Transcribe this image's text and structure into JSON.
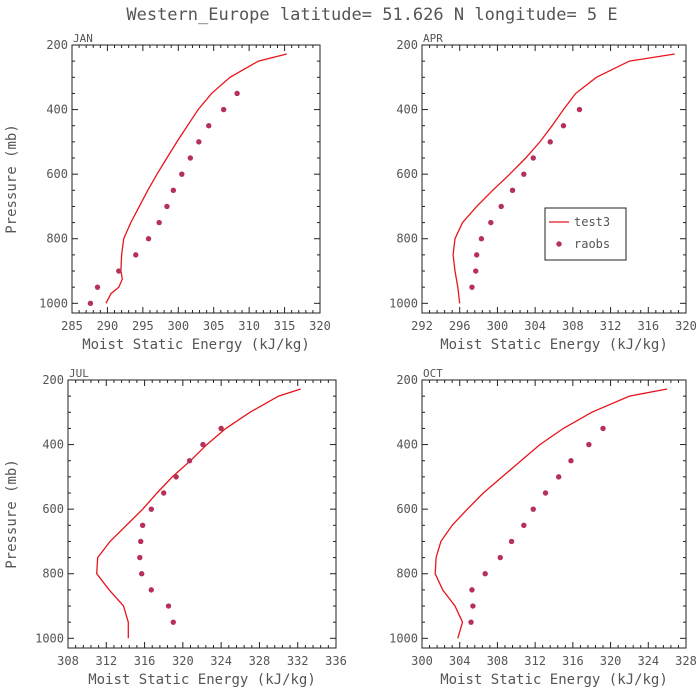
{
  "figure": {
    "title": "Western_Europe  latitude= 51.626 N longitude= 5 E"
  },
  "colors": {
    "model": "#e8141c",
    "obs": "#b5305a",
    "frame": "#222222",
    "text": "#555555"
  },
  "chart_data": [
    {
      "type": "line",
      "title": "JAN",
      "xlabel": "Moist Static Energy (kJ/kg)",
      "ylabel": "Pressure (mb)",
      "xlim": [
        285,
        320
      ],
      "xticks": [
        285,
        290,
        295,
        300,
        305,
        310,
        315,
        320
      ],
      "ylim": [
        1030,
        200
      ],
      "yticks": [
        200,
        400,
        600,
        800,
        1000
      ],
      "grid": false,
      "legend": "none",
      "series": [
        {
          "name": "test3",
          "kind": "line",
          "points": [
            [
              289.8,
              1000
            ],
            [
              290.5,
              970
            ],
            [
              291.6,
              950
            ],
            [
              292.1,
              925
            ],
            [
              291.9,
              900
            ],
            [
              292.0,
              850
            ],
            [
              292.3,
              800
            ],
            [
              293.3,
              750
            ],
            [
              294.5,
              700
            ],
            [
              295.7,
              650
            ],
            [
              297.0,
              600
            ],
            [
              298.4,
              550
            ],
            [
              299.8,
              500
            ],
            [
              301.3,
              450
            ],
            [
              302.8,
              400
            ],
            [
              304.7,
              350
            ],
            [
              307.3,
              300
            ],
            [
              311.3,
              250
            ],
            [
              315.3,
              228
            ]
          ]
        },
        {
          "name": "raobs",
          "kind": "points",
          "points": [
            [
              287.6,
              1000
            ],
            [
              288.6,
              950
            ],
            [
              291.6,
              900
            ],
            [
              294.0,
              850
            ],
            [
              295.8,
              800
            ],
            [
              297.3,
              750
            ],
            [
              298.4,
              700
            ],
            [
              299.3,
              650
            ],
            [
              300.5,
              600
            ],
            [
              301.7,
              550
            ],
            [
              302.9,
              500
            ],
            [
              304.3,
              450
            ],
            [
              306.4,
              400
            ],
            [
              308.3,
              350
            ]
          ]
        }
      ]
    },
    {
      "type": "line",
      "title": "APR",
      "xlabel": "Moist Static Energy (kJ/kg)",
      "ylabel": "",
      "xlim": [
        292,
        320
      ],
      "xticks": [
        292,
        296,
        300,
        304,
        308,
        312,
        316,
        320
      ],
      "ylim": [
        1030,
        200
      ],
      "yticks": [
        200,
        400,
        600,
        800,
        1000
      ],
      "grid": false,
      "legend": "right",
      "series": [
        {
          "name": "test3",
          "kind": "line",
          "points": [
            [
              296.0,
              1000
            ],
            [
              295.8,
              950
            ],
            [
              295.5,
              900
            ],
            [
              295.3,
              850
            ],
            [
              295.5,
              800
            ],
            [
              296.3,
              750
            ],
            [
              297.8,
              700
            ],
            [
              299.5,
              650
            ],
            [
              301.3,
              600
            ],
            [
              303.0,
              550
            ],
            [
              304.5,
              500
            ],
            [
              305.8,
              450
            ],
            [
              307.0,
              400
            ],
            [
              308.3,
              350
            ],
            [
              310.5,
              300
            ],
            [
              314.0,
              250
            ],
            [
              318.8,
              228
            ]
          ]
        },
        {
          "name": "raobs",
          "kind": "points",
          "points": [
            [
              297.3,
              950
            ],
            [
              297.7,
              900
            ],
            [
              297.8,
              850
            ],
            [
              298.3,
              800
            ],
            [
              299.3,
              750
            ],
            [
              300.4,
              700
            ],
            [
              301.6,
              650
            ],
            [
              302.8,
              600
            ],
            [
              303.8,
              550
            ],
            [
              305.6,
              500
            ],
            [
              307.0,
              450
            ],
            [
              308.7,
              400
            ]
          ]
        }
      ]
    },
    {
      "type": "line",
      "title": "JUL",
      "xlabel": "Moist Static Energy (kJ/kg)",
      "ylabel": "Pressure (mb)",
      "xlim": [
        308,
        336
      ],
      "xticks": [
        308,
        312,
        316,
        320,
        324,
        328,
        332,
        336
      ],
      "ylim": [
        1030,
        200
      ],
      "yticks": [
        200,
        400,
        600,
        800,
        1000
      ],
      "grid": false,
      "legend": "none",
      "series": [
        {
          "name": "test3",
          "kind": "line",
          "points": [
            [
              314.3,
              1000
            ],
            [
              314.3,
              950
            ],
            [
              313.8,
              900
            ],
            [
              312.3,
              850
            ],
            [
              311.0,
              800
            ],
            [
              311.1,
              750
            ],
            [
              312.4,
              700
            ],
            [
              314.1,
              650
            ],
            [
              315.8,
              600
            ],
            [
              317.3,
              550
            ],
            [
              318.9,
              500
            ],
            [
              320.8,
              450
            ],
            [
              322.5,
              400
            ],
            [
              324.5,
              350
            ],
            [
              327.0,
              300
            ],
            [
              330.0,
              250
            ],
            [
              332.3,
              228
            ]
          ]
        },
        {
          "name": "raobs",
          "kind": "points",
          "points": [
            [
              319.0,
              950
            ],
            [
              318.5,
              900
            ],
            [
              316.7,
              850
            ],
            [
              315.7,
              800
            ],
            [
              315.5,
              750
            ],
            [
              315.6,
              700
            ],
            [
              315.8,
              650
            ],
            [
              316.7,
              600
            ],
            [
              318.0,
              550
            ],
            [
              319.3,
              500
            ],
            [
              320.7,
              450
            ],
            [
              322.1,
              400
            ],
            [
              324.0,
              350
            ]
          ]
        }
      ]
    },
    {
      "type": "line",
      "title": "OCT",
      "xlabel": "Moist Static Energy (kJ/kg)",
      "ylabel": "",
      "xlim": [
        300,
        328
      ],
      "xticks": [
        300,
        304,
        308,
        312,
        316,
        320,
        324,
        328
      ],
      "ylim": [
        1030,
        200
      ],
      "yticks": [
        200,
        400,
        600,
        800,
        1000
      ],
      "grid": false,
      "legend": "none",
      "series": [
        {
          "name": "test3",
          "kind": "line",
          "points": [
            [
              303.8,
              1000
            ],
            [
              304.3,
              950
            ],
            [
              303.5,
              900
            ],
            [
              302.2,
              850
            ],
            [
              301.4,
              800
            ],
            [
              301.5,
              750
            ],
            [
              302.0,
              700
            ],
            [
              303.2,
              650
            ],
            [
              304.8,
              600
            ],
            [
              306.5,
              550
            ],
            [
              308.5,
              500
            ],
            [
              310.5,
              450
            ],
            [
              312.5,
              400
            ],
            [
              315.0,
              350
            ],
            [
              318.0,
              300
            ],
            [
              322.0,
              250
            ],
            [
              326.0,
              228
            ]
          ]
        },
        {
          "name": "raobs",
          "kind": "points",
          "points": [
            [
              305.2,
              950
            ],
            [
              305.4,
              900
            ],
            [
              305.3,
              850
            ],
            [
              306.7,
              800
            ],
            [
              308.3,
              750
            ],
            [
              309.5,
              700
            ],
            [
              310.8,
              650
            ],
            [
              311.8,
              600
            ],
            [
              313.1,
              550
            ],
            [
              314.5,
              500
            ],
            [
              315.8,
              450
            ],
            [
              317.7,
              400
            ],
            [
              319.2,
              350
            ]
          ]
        }
      ]
    }
  ]
}
